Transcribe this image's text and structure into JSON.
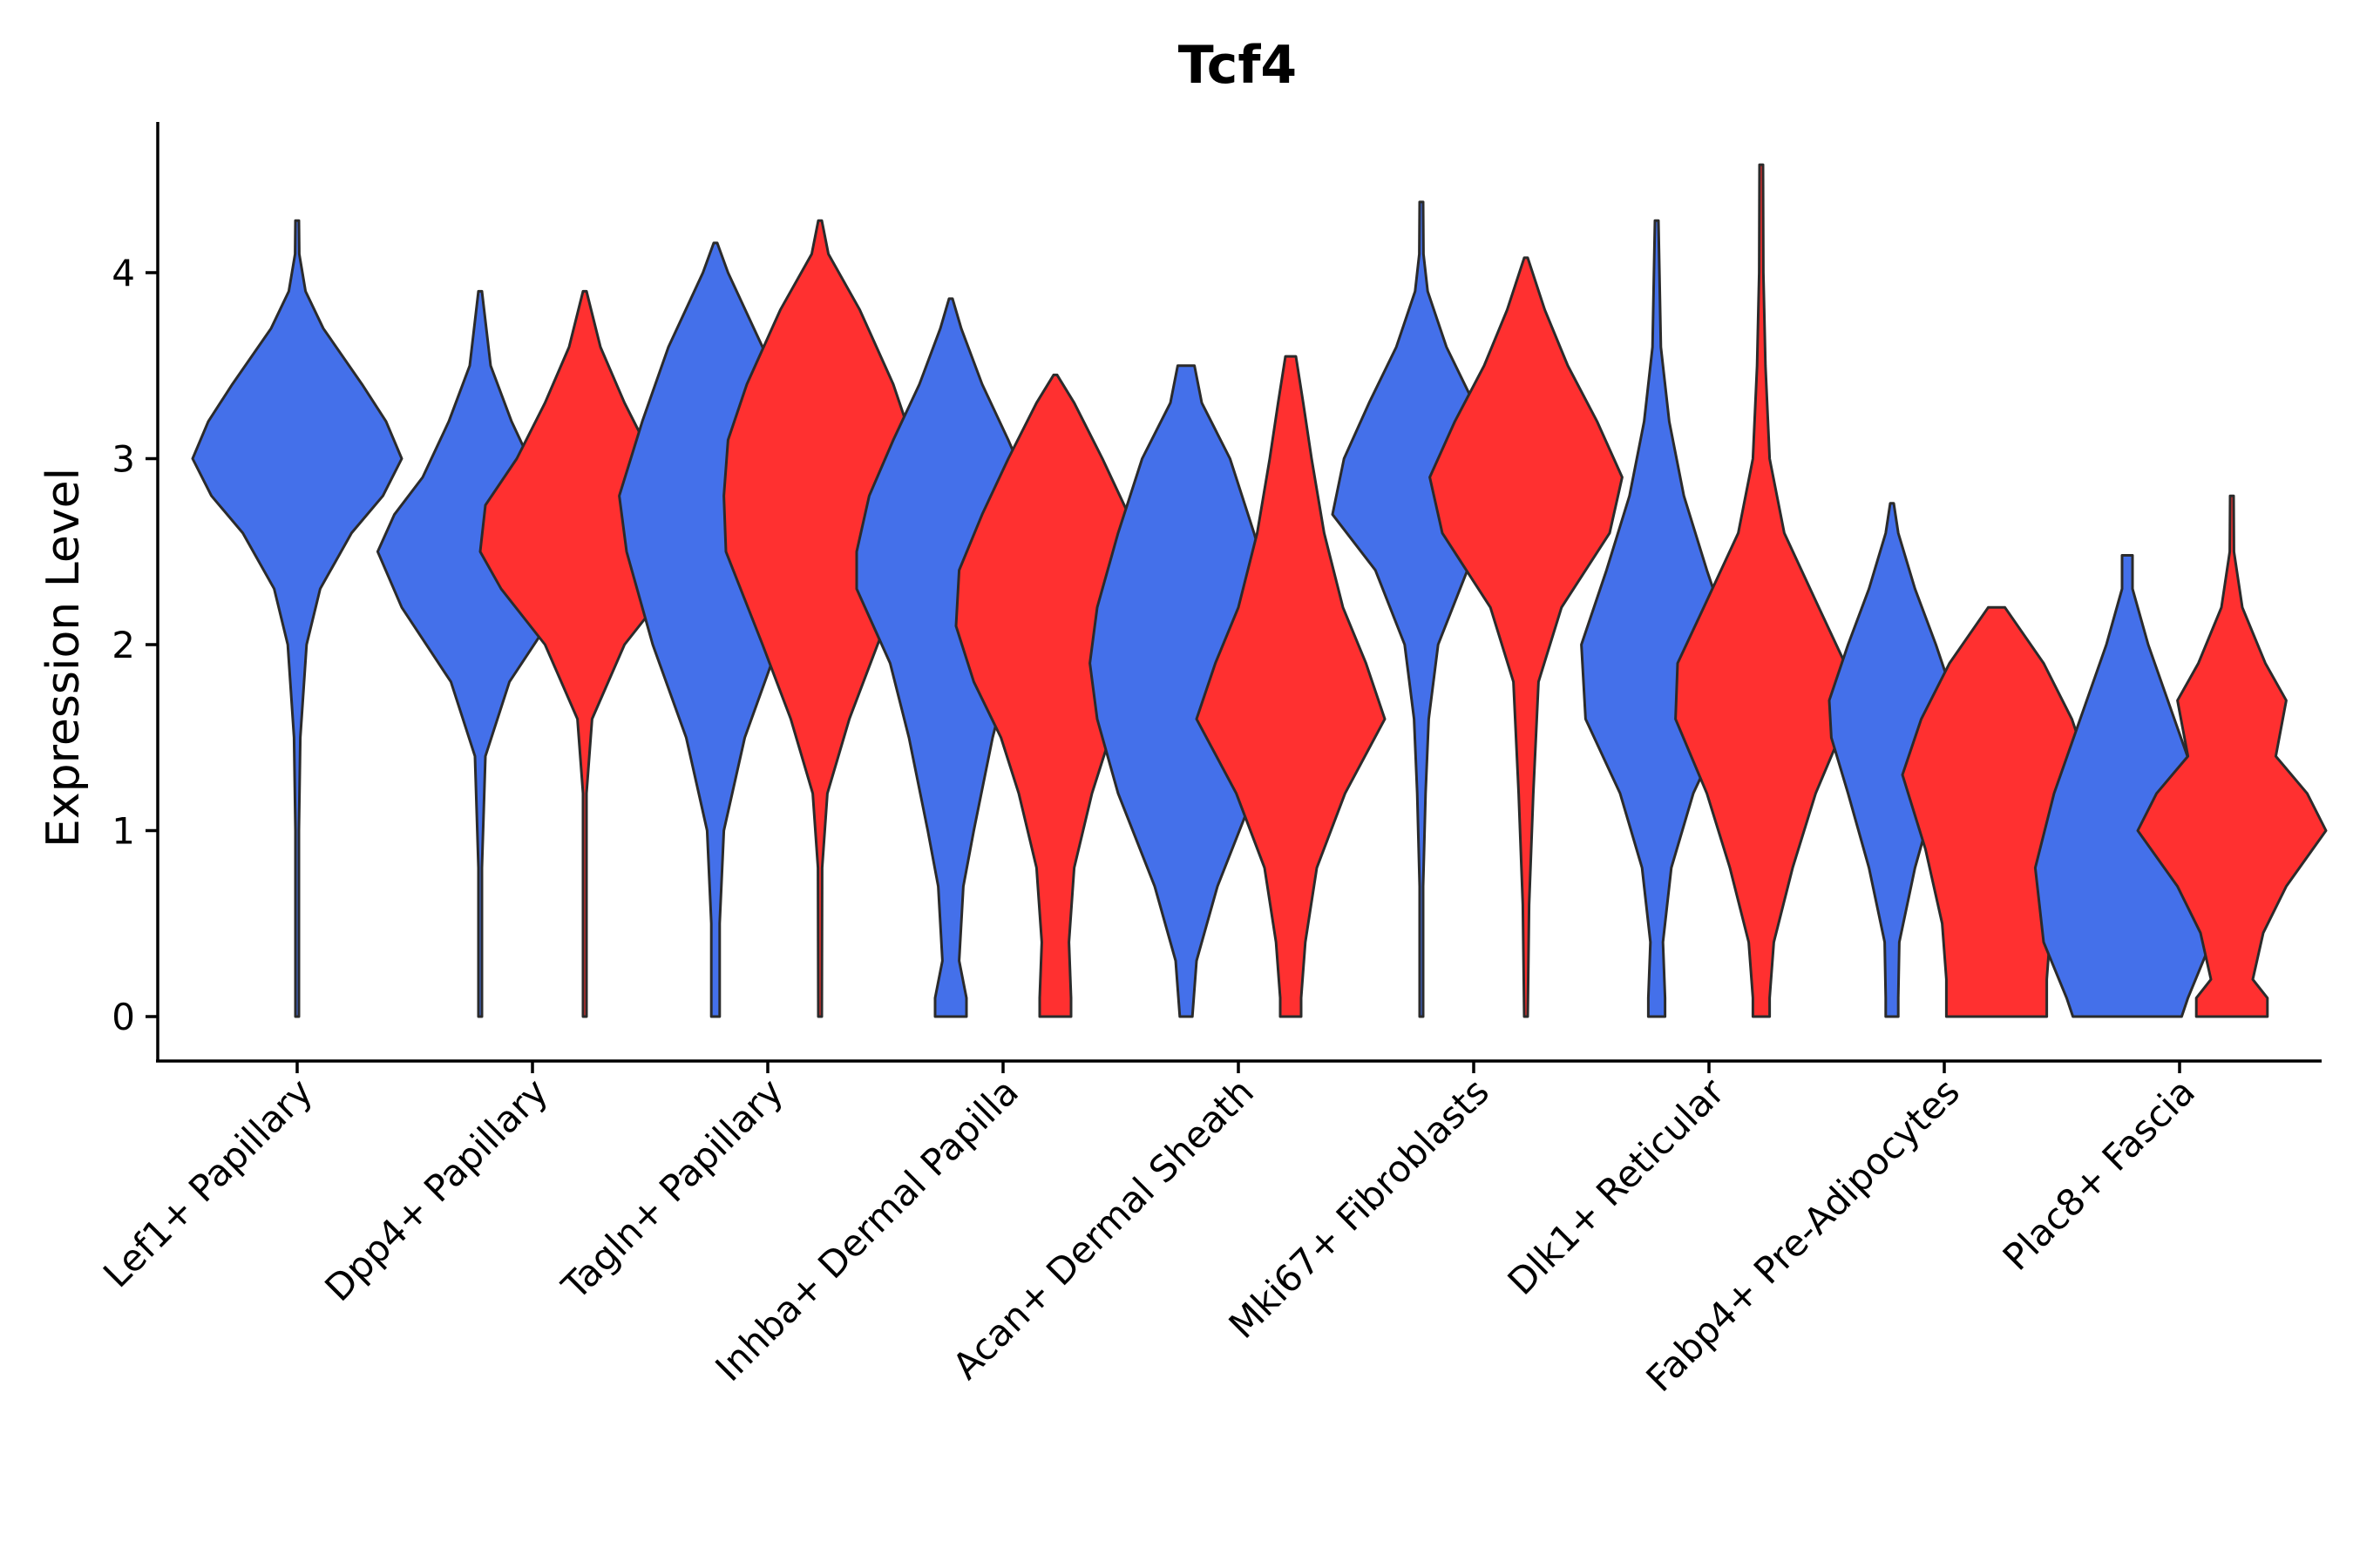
{
  "chart_data": {
    "type": "violin",
    "title": "Tcf4",
    "xlabel": "",
    "ylabel": "Expression Level",
    "ylim": [
      -0.23,
      4.8
    ],
    "yticks": [
      0,
      1,
      2,
      3,
      4
    ],
    "grid": false,
    "colors": {
      "group_a": "#4470EA",
      "group_b": "#FF3030"
    },
    "categories": [
      "Lef1+ Papillary",
      "Dpp4+ Papillary",
      "Tagln+ Papillary",
      "Inhba+ Dermal Papilla",
      "Acan+ Dermal Sheath",
      "Mki67+ Fibroblasts",
      "Dlk1+ Reticular",
      "Fabp4+ Pre-Adipocytes",
      "Plac8+ Fascia"
    ],
    "violins": [
      {
        "category": "Lef1+ Papillary",
        "group": "a",
        "max": 4.28,
        "halfwidth": [
          [
            0,
            0.01
          ],
          [
            1.0,
            0.01
          ],
          [
            1.5,
            0.03
          ],
          [
            2.0,
            0.09
          ],
          [
            2.3,
            0.22
          ],
          [
            2.6,
            0.52
          ],
          [
            2.8,
            0.82
          ],
          [
            3.0,
            1.0
          ],
          [
            3.2,
            0.85
          ],
          [
            3.4,
            0.62
          ],
          [
            3.7,
            0.25
          ],
          [
            3.9,
            0.08
          ],
          [
            4.1,
            0.02
          ],
          [
            4.28,
            0
          ]
        ]
      },
      {
        "category": "Dpp4+ Papillary",
        "group": "a",
        "max": 3.9,
        "halfwidth": [
          [
            0,
            0.01
          ],
          [
            0.8,
            0.01
          ],
          [
            1.4,
            0.05
          ],
          [
            1.8,
            0.28
          ],
          [
            2.2,
            0.75
          ],
          [
            2.5,
            0.98
          ],
          [
            2.7,
            0.82
          ],
          [
            2.9,
            0.55
          ],
          [
            3.2,
            0.3
          ],
          [
            3.5,
            0.1
          ],
          [
            3.9,
            0
          ]
        ]
      },
      {
        "category": "Dpp4+ Papillary",
        "group": "b",
        "max": 3.9,
        "halfwidth": [
          [
            0,
            0.01
          ],
          [
            1.2,
            0.01
          ],
          [
            1.6,
            0.07
          ],
          [
            2.0,
            0.38
          ],
          [
            2.3,
            0.8
          ],
          [
            2.5,
            1.0
          ],
          [
            2.75,
            0.95
          ],
          [
            3.0,
            0.65
          ],
          [
            3.3,
            0.38
          ],
          [
            3.6,
            0.15
          ],
          [
            3.9,
            0
          ]
        ]
      },
      {
        "category": "Tagln+ Papillary",
        "group": "a",
        "max": 4.16,
        "halfwidth": [
          [
            0,
            0.04
          ],
          [
            0.5,
            0.04
          ],
          [
            1.0,
            0.08
          ],
          [
            1.5,
            0.28
          ],
          [
            2.0,
            0.6
          ],
          [
            2.5,
            0.85
          ],
          [
            2.8,
            0.92
          ],
          [
            3.2,
            0.7
          ],
          [
            3.6,
            0.45
          ],
          [
            4.0,
            0.12
          ],
          [
            4.16,
            0
          ]
        ]
      },
      {
        "category": "Tagln+ Papillary",
        "group": "b",
        "max": 4.28,
        "halfwidth": [
          [
            0,
            0.01
          ],
          [
            0.8,
            0.02
          ],
          [
            1.2,
            0.07
          ],
          [
            1.6,
            0.28
          ],
          [
            2.0,
            0.55
          ],
          [
            2.5,
            0.9
          ],
          [
            2.8,
            0.92
          ],
          [
            3.1,
            0.88
          ],
          [
            3.4,
            0.7
          ],
          [
            3.8,
            0.38
          ],
          [
            4.1,
            0.08
          ],
          [
            4.28,
            0
          ]
        ]
      },
      {
        "category": "Inhba+ Dermal Papilla",
        "group": "a",
        "max": 3.86,
        "halfwidth": [
          [
            0,
            0.15
          ],
          [
            0.1,
            0.15
          ],
          [
            0.3,
            0.08
          ],
          [
            0.7,
            0.12
          ],
          [
            1.0,
            0.22
          ],
          [
            1.5,
            0.4
          ],
          [
            1.9,
            0.58
          ],
          [
            2.3,
            0.9
          ],
          [
            2.5,
            0.9
          ],
          [
            2.8,
            0.78
          ],
          [
            3.1,
            0.55
          ],
          [
            3.4,
            0.3
          ],
          [
            3.7,
            0.1
          ],
          [
            3.86,
            0
          ]
        ]
      },
      {
        "category": "Inhba+ Dermal Papilla",
        "group": "b",
        "max": 3.45,
        "halfwidth": [
          [
            0,
            0.15
          ],
          [
            0.1,
            0.15
          ],
          [
            0.4,
            0.13
          ],
          [
            0.8,
            0.18
          ],
          [
            1.2,
            0.35
          ],
          [
            1.5,
            0.52
          ],
          [
            1.8,
            0.78
          ],
          [
            2.1,
            0.95
          ],
          [
            2.4,
            0.92
          ],
          [
            2.7,
            0.7
          ],
          [
            3.0,
            0.45
          ],
          [
            3.3,
            0.18
          ],
          [
            3.45,
            0
          ]
        ]
      },
      {
        "category": "Acan+ Dermal Sheath",
        "group": "a",
        "max": 3.5,
        "halfwidth": [
          [
            0,
            0.06
          ],
          [
            0.3,
            0.1
          ],
          [
            0.7,
            0.3
          ],
          [
            1.2,
            0.65
          ],
          [
            1.6,
            0.85
          ],
          [
            1.9,
            0.92
          ],
          [
            2.2,
            0.85
          ],
          [
            2.6,
            0.65
          ],
          [
            3.0,
            0.42
          ],
          [
            3.3,
            0.15
          ],
          [
            3.5,
            0.08
          ]
        ]
      },
      {
        "category": "Acan+ Dermal Sheath",
        "group": "b",
        "max": 3.55,
        "halfwidth": [
          [
            0,
            0.1
          ],
          [
            0.1,
            0.1
          ],
          [
            0.4,
            0.14
          ],
          [
            0.8,
            0.25
          ],
          [
            1.2,
            0.52
          ],
          [
            1.6,
            0.9
          ],
          [
            1.9,
            0.72
          ],
          [
            2.2,
            0.5
          ],
          [
            2.6,
            0.32
          ],
          [
            3.0,
            0.2
          ],
          [
            3.3,
            0.12
          ],
          [
            3.55,
            0.05
          ]
        ]
      },
      {
        "category": "Mki67+ Fibroblasts",
        "group": "a",
        "max": 4.38,
        "halfwidth": [
          [
            0,
            0.01
          ],
          [
            0.7,
            0.01
          ],
          [
            1.2,
            0.04
          ],
          [
            1.6,
            0.07
          ],
          [
            2.0,
            0.16
          ],
          [
            2.4,
            0.44
          ],
          [
            2.7,
            0.85
          ],
          [
            3.0,
            0.74
          ],
          [
            3.3,
            0.5
          ],
          [
            3.6,
            0.24
          ],
          [
            3.9,
            0.06
          ],
          [
            4.1,
            0.02
          ],
          [
            4.38,
            0
          ]
        ]
      },
      {
        "category": "Mki67+ Fibroblasts",
        "group": "b",
        "max": 4.08,
        "halfwidth": [
          [
            0,
            0.01
          ],
          [
            0.6,
            0.03
          ],
          [
            1.2,
            0.07
          ],
          [
            1.8,
            0.12
          ],
          [
            2.2,
            0.34
          ],
          [
            2.6,
            0.8
          ],
          [
            2.9,
            0.92
          ],
          [
            3.2,
            0.68
          ],
          [
            3.5,
            0.4
          ],
          [
            3.8,
            0.18
          ],
          [
            4.08,
            0
          ]
        ]
      },
      {
        "category": "Dlk1+ Reticular",
        "group": "a",
        "max": 4.28,
        "halfwidth": [
          [
            0,
            0.08
          ],
          [
            0.1,
            0.08
          ],
          [
            0.4,
            0.06
          ],
          [
            0.8,
            0.14
          ],
          [
            1.2,
            0.35
          ],
          [
            1.6,
            0.68
          ],
          [
            2.0,
            0.72
          ],
          [
            2.4,
            0.48
          ],
          [
            2.8,
            0.26
          ],
          [
            3.2,
            0.12
          ],
          [
            3.6,
            0.04
          ],
          [
            4.28,
            0
          ]
        ]
      },
      {
        "category": "Dlk1+ Reticular",
        "group": "b",
        "max": 4.58,
        "halfwidth": [
          [
            0,
            0.08
          ],
          [
            0.1,
            0.08
          ],
          [
            0.4,
            0.12
          ],
          [
            0.8,
            0.3
          ],
          [
            1.2,
            0.52
          ],
          [
            1.6,
            0.82
          ],
          [
            1.9,
            0.8
          ],
          [
            2.2,
            0.55
          ],
          [
            2.6,
            0.22
          ],
          [
            3.0,
            0.08
          ],
          [
            3.5,
            0.04
          ],
          [
            4.0,
            0.02
          ],
          [
            4.58,
            0
          ]
        ]
      },
      {
        "category": "Fabp4+ Pre-Adipocytes",
        "group": "a",
        "max": 2.76,
        "halfwidth": [
          [
            0,
            0.06
          ],
          [
            0.1,
            0.06
          ],
          [
            0.4,
            0.07
          ],
          [
            0.8,
            0.22
          ],
          [
            1.2,
            0.42
          ],
          [
            1.5,
            0.58
          ],
          [
            1.7,
            0.6
          ],
          [
            2.0,
            0.42
          ],
          [
            2.3,
            0.22
          ],
          [
            2.6,
            0.06
          ],
          [
            2.76,
            0
          ]
        ]
      },
      {
        "category": "Fabp4+ Pre-Adipocytes",
        "group": "b",
        "max": 2.2,
        "halfwidth": [
          [
            0,
            0.48
          ],
          [
            0.2,
            0.48
          ],
          [
            0.5,
            0.52
          ],
          [
            0.9,
            0.68
          ],
          [
            1.3,
            0.9
          ],
          [
            1.6,
            0.72
          ],
          [
            1.9,
            0.45
          ],
          [
            2.2,
            0.08
          ]
        ]
      },
      {
        "category": "Plac8+ Fascia",
        "group": "a",
        "max": 2.48,
        "halfwidth": [
          [
            0,
            0.52
          ],
          [
            0.1,
            0.58
          ],
          [
            0.4,
            0.8
          ],
          [
            0.8,
            0.88
          ],
          [
            1.2,
            0.7
          ],
          [
            1.6,
            0.45
          ],
          [
            2.0,
            0.2
          ],
          [
            2.3,
            0.05
          ],
          [
            2.48,
            0.05
          ]
        ]
      },
      {
        "category": "Plac8+ Fascia",
        "group": "b",
        "max": 2.8,
        "halfwidth": [
          [
            0,
            0.34
          ],
          [
            0.1,
            0.34
          ],
          [
            0.2,
            0.2
          ],
          [
            0.45,
            0.3
          ],
          [
            0.7,
            0.52
          ],
          [
            1.0,
            0.9
          ],
          [
            1.2,
            0.72
          ],
          [
            1.4,
            0.42
          ],
          [
            1.7,
            0.52
          ],
          [
            1.9,
            0.32
          ],
          [
            2.2,
            0.1
          ],
          [
            2.5,
            0.02
          ],
          [
            2.8,
            0
          ]
        ]
      }
    ]
  }
}
